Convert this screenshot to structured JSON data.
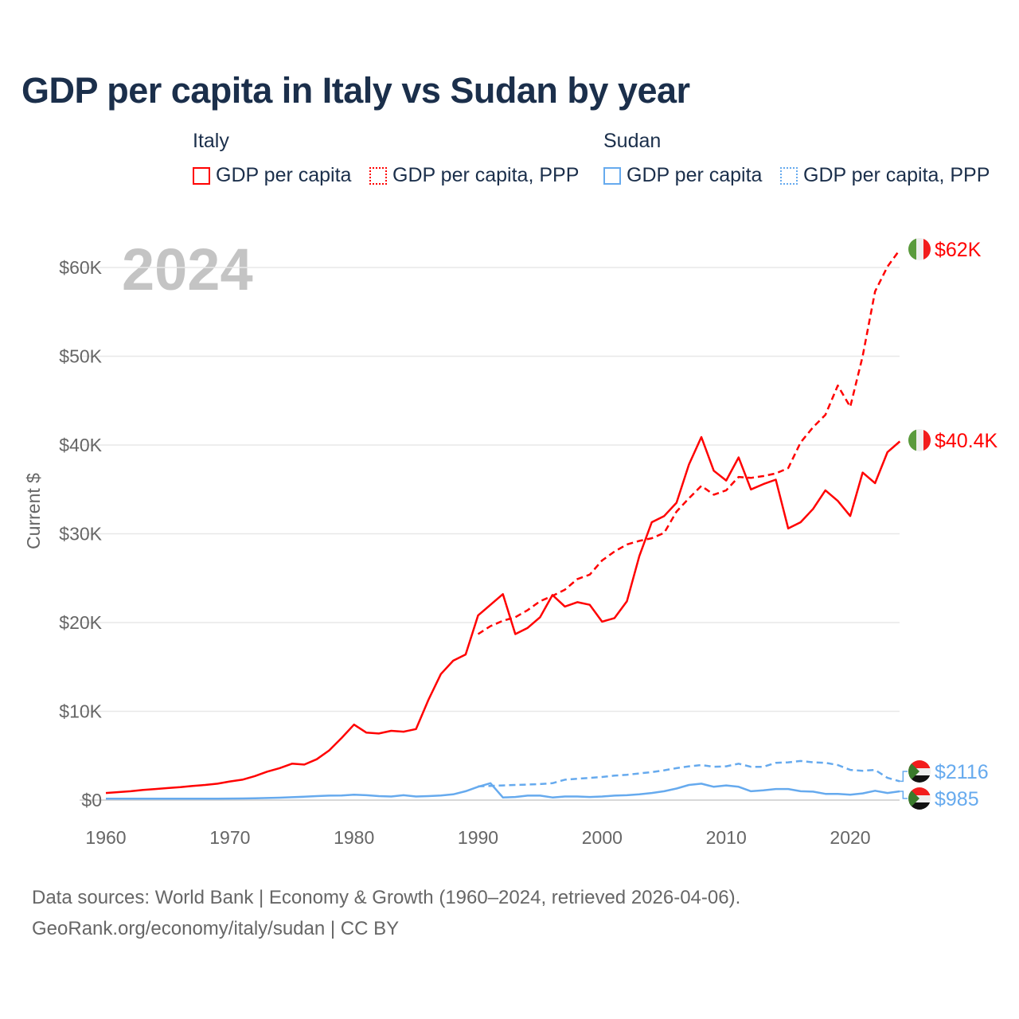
{
  "title": "GDP per capita in Italy vs Sudan by year",
  "legend": {
    "groups": [
      {
        "name": "Italy",
        "items": [
          "GDP per capita",
          "GDP per capita, PPP"
        ],
        "color": "#ff0000"
      },
      {
        "name": "Sudan",
        "items": [
          "GDP per capita",
          "GDP per capita, PPP"
        ],
        "color": "#66aaee"
      }
    ]
  },
  "year_watermark": "2024",
  "source": {
    "line1": "Data sources: World Bank | Economy & Growth (1960–2024, retrieved 2026-04-06).",
    "line2": "GeoRank.org/economy/italy/sudan | CC BY"
  },
  "chart_data": {
    "type": "line",
    "title": "GDP per capita in Italy vs Sudan by year",
    "ylabel": "Current $",
    "xlabel": "",
    "xlim": [
      1960,
      2024
    ],
    "ylim": [
      0,
      62000
    ],
    "x_ticks": [
      1960,
      1970,
      1980,
      1990,
      2000,
      2010,
      2020
    ],
    "y_ticks": [
      {
        "v": 0,
        "label": "$0"
      },
      {
        "v": 10000,
        "label": "$10K"
      },
      {
        "v": 20000,
        "label": "$20K"
      },
      {
        "v": 30000,
        "label": "$30K"
      },
      {
        "v": 40000,
        "label": "$40K"
      },
      {
        "v": 50000,
        "label": "$50K"
      },
      {
        "v": 60000,
        "label": "$60K"
      }
    ],
    "grid": true,
    "series": [
      {
        "name": "Italy GDP per capita",
        "country": "Italy",
        "style": "solid",
        "color": "#ff0000",
        "start": 1960,
        "end_label": "$40.4K",
        "values": [
          800,
          900,
          1000,
          1150,
          1250,
          1350,
          1450,
          1600,
          1700,
          1850,
          2100,
          2300,
          2700,
          3200,
          3600,
          4100,
          4000,
          4600,
          5600,
          7000,
          8500,
          7600,
          7500,
          7800,
          7700,
          8000,
          11300,
          14200,
          15700,
          16400,
          20800,
          22000,
          23200,
          18700,
          19400,
          20600,
          23100,
          21800,
          22300,
          22000,
          20100,
          20500,
          22400,
          27500,
          31300,
          32000,
          33500,
          37800,
          40900,
          37100,
          36000,
          38600,
          35000,
          35600,
          36100,
          30600,
          31300,
          32800,
          34900,
          33700,
          32000,
          36900,
          35700,
          39200,
          40400
        ]
      },
      {
        "name": "Italy GDP per capita, PPP",
        "country": "Italy",
        "style": "dashed",
        "color": "#ff0000",
        "start": 1990,
        "end_label": "$62K",
        "values": [
          18700,
          19600,
          20200,
          20600,
          21400,
          22400,
          23000,
          23700,
          24900,
          25400,
          27000,
          28000,
          28800,
          29200,
          29500,
          30100,
          32500,
          34000,
          35400,
          34400,
          34900,
          36400,
          36300,
          36500,
          36800,
          37400,
          40300,
          42000,
          43400,
          46700,
          44300,
          50000,
          57300,
          60100,
          62000
        ]
      },
      {
        "name": "Sudan GDP per capita",
        "country": "Sudan",
        "style": "solid",
        "color": "#66aaee",
        "start": 1960,
        "end_label": "$985",
        "values": [
          150,
          150,
          160,
          160,
          160,
          160,
          160,
          160,
          160,
          160,
          170,
          180,
          200,
          230,
          270,
          320,
          380,
          450,
          500,
          520,
          600,
          550,
          450,
          400,
          550,
          400,
          450,
          520,
          650,
          1000,
          1500,
          1900,
          300,
          350,
          500,
          500,
          300,
          400,
          400,
          350,
          400,
          500,
          550,
          650,
          800,
          1000,
          1300,
          1700,
          1850,
          1500,
          1650,
          1500,
          1000,
          1100,
          1250,
          1250,
          1000,
          950,
          700,
          700,
          600,
          750,
          1050,
          800,
          985
        ]
      },
      {
        "name": "Sudan GDP per capita, PPP",
        "country": "Sudan",
        "style": "dashed",
        "color": "#66aaee",
        "start": 1990,
        "end_label": "$2116",
        "values": [
          1550,
          1600,
          1650,
          1700,
          1750,
          1800,
          1900,
          2300,
          2400,
          2500,
          2600,
          2750,
          2850,
          3000,
          3150,
          3350,
          3600,
          3800,
          3950,
          3750,
          3800,
          4100,
          3750,
          3750,
          4200,
          4250,
          4400,
          4250,
          4200,
          3950,
          3400,
          3300,
          3400,
          2500,
          2116
        ]
      }
    ]
  }
}
